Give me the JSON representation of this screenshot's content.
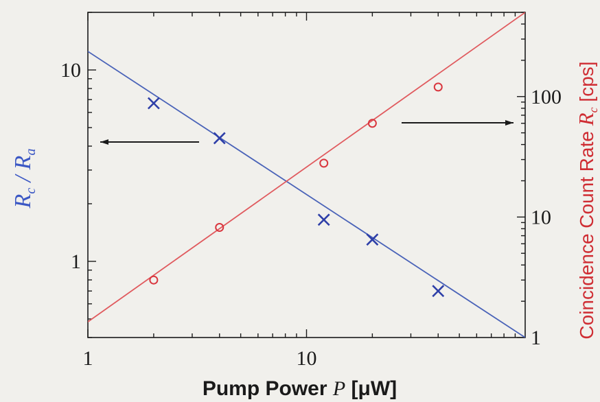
{
  "chart_data": {
    "type": "scatter",
    "title": "",
    "xlabel": "Pump Power P [μW]",
    "xlabel_parts": [
      "Pump Power ",
      "P",
      " [μW]"
    ],
    "ylabel_left": "Rc / Ra",
    "ylabel_left_parts": [
      "R",
      "c",
      " / ",
      "R",
      "a"
    ],
    "ylabel_right": "Coincidence Count Rate Rc [cps]",
    "ylabel_right_parts": [
      "Coincidence Count Rate ",
      "R",
      "c",
      " [cps]"
    ],
    "x_scale": "log",
    "xlim": [
      1,
      100
    ],
    "ylim_left": [
      0.4,
      20
    ],
    "ylim_right": [
      1,
      500
    ],
    "y_scale_left": "log",
    "y_scale_right": "log",
    "x_ticks": [
      1,
      10
    ],
    "x_tick_labels": [
      "1",
      "10"
    ],
    "y_left_ticks": [
      1,
      10
    ],
    "y_left_tick_labels": [
      "1",
      "10"
    ],
    "y_right_ticks": [
      1,
      10,
      100
    ],
    "y_right_tick_labels": [
      "1",
      "10",
      "100"
    ],
    "grid": false,
    "series": [
      {
        "axis": "left",
        "marker": "x",
        "color": "#2e3fa8",
        "x": [
          2,
          4,
          12,
          20,
          40
        ],
        "values": [
          6.7,
          4.4,
          1.65,
          1.3,
          0.7
        ]
      },
      {
        "axis": "right",
        "marker": "o",
        "color": "#d9363e",
        "x": [
          2,
          4,
          12,
          20,
          40
        ],
        "values": [
          3.0,
          8.2,
          28,
          60,
          120
        ]
      }
    ],
    "fit_lines": [
      {
        "axis": "left",
        "color": "#4a63b8",
        "x": [
          1,
          100
        ],
        "values": [
          12.5,
          0.4
        ]
      },
      {
        "axis": "right",
        "color": "#e05a5e",
        "x": [
          1,
          100
        ],
        "values": [
          1.35,
          500
        ]
      }
    ],
    "arrows": [
      {
        "direction": "left",
        "points_to": "left axis"
      },
      {
        "direction": "right",
        "points_to": "right axis"
      }
    ],
    "colors": {
      "left_axis_label": "#3b57c4",
      "right_axis_label": "#cf2d33",
      "frame": "#1a1a1a"
    }
  }
}
